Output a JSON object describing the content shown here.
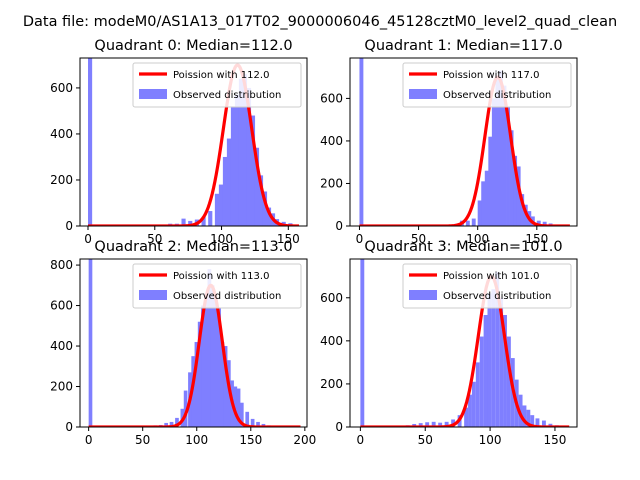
{
  "figure_title": "Data file: modeM0/AS1A13_017T02_9000006046_45128cztM0_level2_quad_clean",
  "colors": {
    "poisson_line": "#ff0000",
    "histogram": "#7f7fff"
  },
  "chart_data": [
    {
      "type": "bar",
      "title": "Quadrant 0: Median=112.0",
      "xlim": [
        -6,
        164
      ],
      "ylim": [
        0,
        730
      ],
      "xticks": [
        0,
        50,
        100,
        150
      ],
      "yticks": [
        0,
        200,
        400,
        600
      ],
      "legend": {
        "position": "top-right",
        "entries": [
          "Poission with 112.0",
          "Observed distribution"
        ]
      },
      "poisson_mean": 112.0,
      "poisson_peak": 700,
      "bin_width": 3.1,
      "zero_bin_count": 730,
      "bins": [
        [
          50,
          2
        ],
        [
          55,
          4
        ],
        [
          60,
          10
        ],
        [
          65,
          10
        ],
        [
          70,
          32
        ],
        [
          75,
          22
        ],
        [
          80,
          28
        ],
        [
          85,
          40
        ],
        [
          90,
          65
        ],
        [
          95,
          140
        ],
        [
          98,
          180
        ],
        [
          101,
          300
        ],
        [
          104,
          380
        ],
        [
          107,
          520
        ],
        [
          110,
          570
        ],
        [
          113,
          640
        ],
        [
          116,
          660
        ],
        [
          119,
          600
        ],
        [
          122,
          480
        ],
        [
          125,
          340
        ],
        [
          128,
          220
        ],
        [
          131,
          150
        ],
        [
          134,
          80
        ],
        [
          137,
          55
        ],
        [
          140,
          30
        ],
        [
          145,
          18
        ],
        [
          150,
          12
        ],
        [
          155,
          5
        ]
      ]
    },
    {
      "type": "bar",
      "title": "Quadrant 1: Median=117.0",
      "xlim": [
        -8,
        184
      ],
      "ylim": [
        0,
        790
      ],
      "xticks": [
        0,
        50,
        100,
        150
      ],
      "yticks": [
        0,
        200,
        400,
        600
      ],
      "legend": {
        "position": "top-right",
        "entries": [
          "Poission with 117.0",
          "Observed distribution"
        ]
      },
      "poisson_mean": 117.0,
      "poisson_peak": 700,
      "bin_width": 3.3,
      "zero_bin_count": 790,
      "bins": [
        [
          80,
          10
        ],
        [
          85,
          25
        ],
        [
          90,
          25
        ],
        [
          95,
          35
        ],
        [
          100,
          120
        ],
        [
          103,
          210
        ],
        [
          106,
          260
        ],
        [
          109,
          420
        ],
        [
          112,
          600
        ],
        [
          115,
          690
        ],
        [
          118,
          730
        ],
        [
          121,
          660
        ],
        [
          124,
          560
        ],
        [
          127,
          450
        ],
        [
          130,
          330
        ],
        [
          133,
          280
        ],
        [
          136,
          150
        ],
        [
          139,
          100
        ],
        [
          142,
          70
        ],
        [
          145,
          45
        ],
        [
          150,
          25
        ],
        [
          155,
          20
        ],
        [
          160,
          12
        ]
      ]
    },
    {
      "type": "bar",
      "title": "Quadrant 2: Median=113.0",
      "xlim": [
        -8,
        202
      ],
      "ylim": [
        0,
        830
      ],
      "xticks": [
        0,
        50,
        100,
        150,
        200
      ],
      "yticks": [
        0,
        200,
        400,
        600,
        800
      ],
      "legend": {
        "position": "top-right",
        "entries": [
          "Poission with 113.0",
          "Observed distribution"
        ]
      },
      "poisson_mean": 113.0,
      "poisson_peak": 700,
      "bin_width": 3.4,
      "zero_bin_count": 830,
      "bins": [
        [
          60,
          8
        ],
        [
          65,
          10
        ],
        [
          70,
          20
        ],
        [
          75,
          25
        ],
        [
          80,
          45
        ],
        [
          85,
          90
        ],
        [
          88,
          180
        ],
        [
          92,
          270
        ],
        [
          95,
          350
        ],
        [
          98,
          420
        ],
        [
          101,
          520
        ],
        [
          104,
          600
        ],
        [
          107,
          660
        ],
        [
          110,
          780
        ],
        [
          113,
          700
        ],
        [
          116,
          640
        ],
        [
          119,
          590
        ],
        [
          122,
          420
        ],
        [
          125,
          400
        ],
        [
          128,
          330
        ],
        [
          131,
          230
        ],
        [
          134,
          200
        ],
        [
          137,
          190
        ],
        [
          140,
          120
        ],
        [
          145,
          75
        ],
        [
          150,
          40
        ],
        [
          155,
          25
        ],
        [
          160,
          15
        ],
        [
          165,
          8
        ]
      ]
    },
    {
      "type": "bar",
      "title": "Quadrant 3: Median=101.0",
      "xlim": [
        -8,
        167
      ],
      "ylim": [
        0,
        780
      ],
      "xticks": [
        0,
        50,
        100,
        150
      ],
      "yticks": [
        0,
        200,
        400,
        600
      ],
      "legend": {
        "position": "top-right",
        "entries": [
          "Poission with 101.0",
          "Observed distribution"
        ]
      },
      "poisson_mean": 101.0,
      "poisson_peak": 700,
      "bin_width": 3.0,
      "zero_bin_count": 780,
      "bins": [
        [
          30,
          5
        ],
        [
          35,
          8
        ],
        [
          40,
          14
        ],
        [
          45,
          18
        ],
        [
          50,
          22
        ],
        [
          55,
          24
        ],
        [
          60,
          20
        ],
        [
          65,
          24
        ],
        [
          70,
          35
        ],
        [
          75,
          55
        ],
        [
          80,
          90
        ],
        [
          83,
          150
        ],
        [
          86,
          210
        ],
        [
          89,
          300
        ],
        [
          92,
          420
        ],
        [
          95,
          520
        ],
        [
          98,
          620
        ],
        [
          101,
          640
        ],
        [
          104,
          720
        ],
        [
          107,
          600
        ],
        [
          110,
          520
        ],
        [
          113,
          420
        ],
        [
          116,
          320
        ],
        [
          119,
          220
        ],
        [
          122,
          150
        ],
        [
          125,
          100
        ],
        [
          128,
          80
        ],
        [
          131,
          55
        ],
        [
          135,
          40
        ],
        [
          140,
          30
        ],
        [
          145,
          15
        ],
        [
          150,
          8
        ]
      ]
    }
  ]
}
